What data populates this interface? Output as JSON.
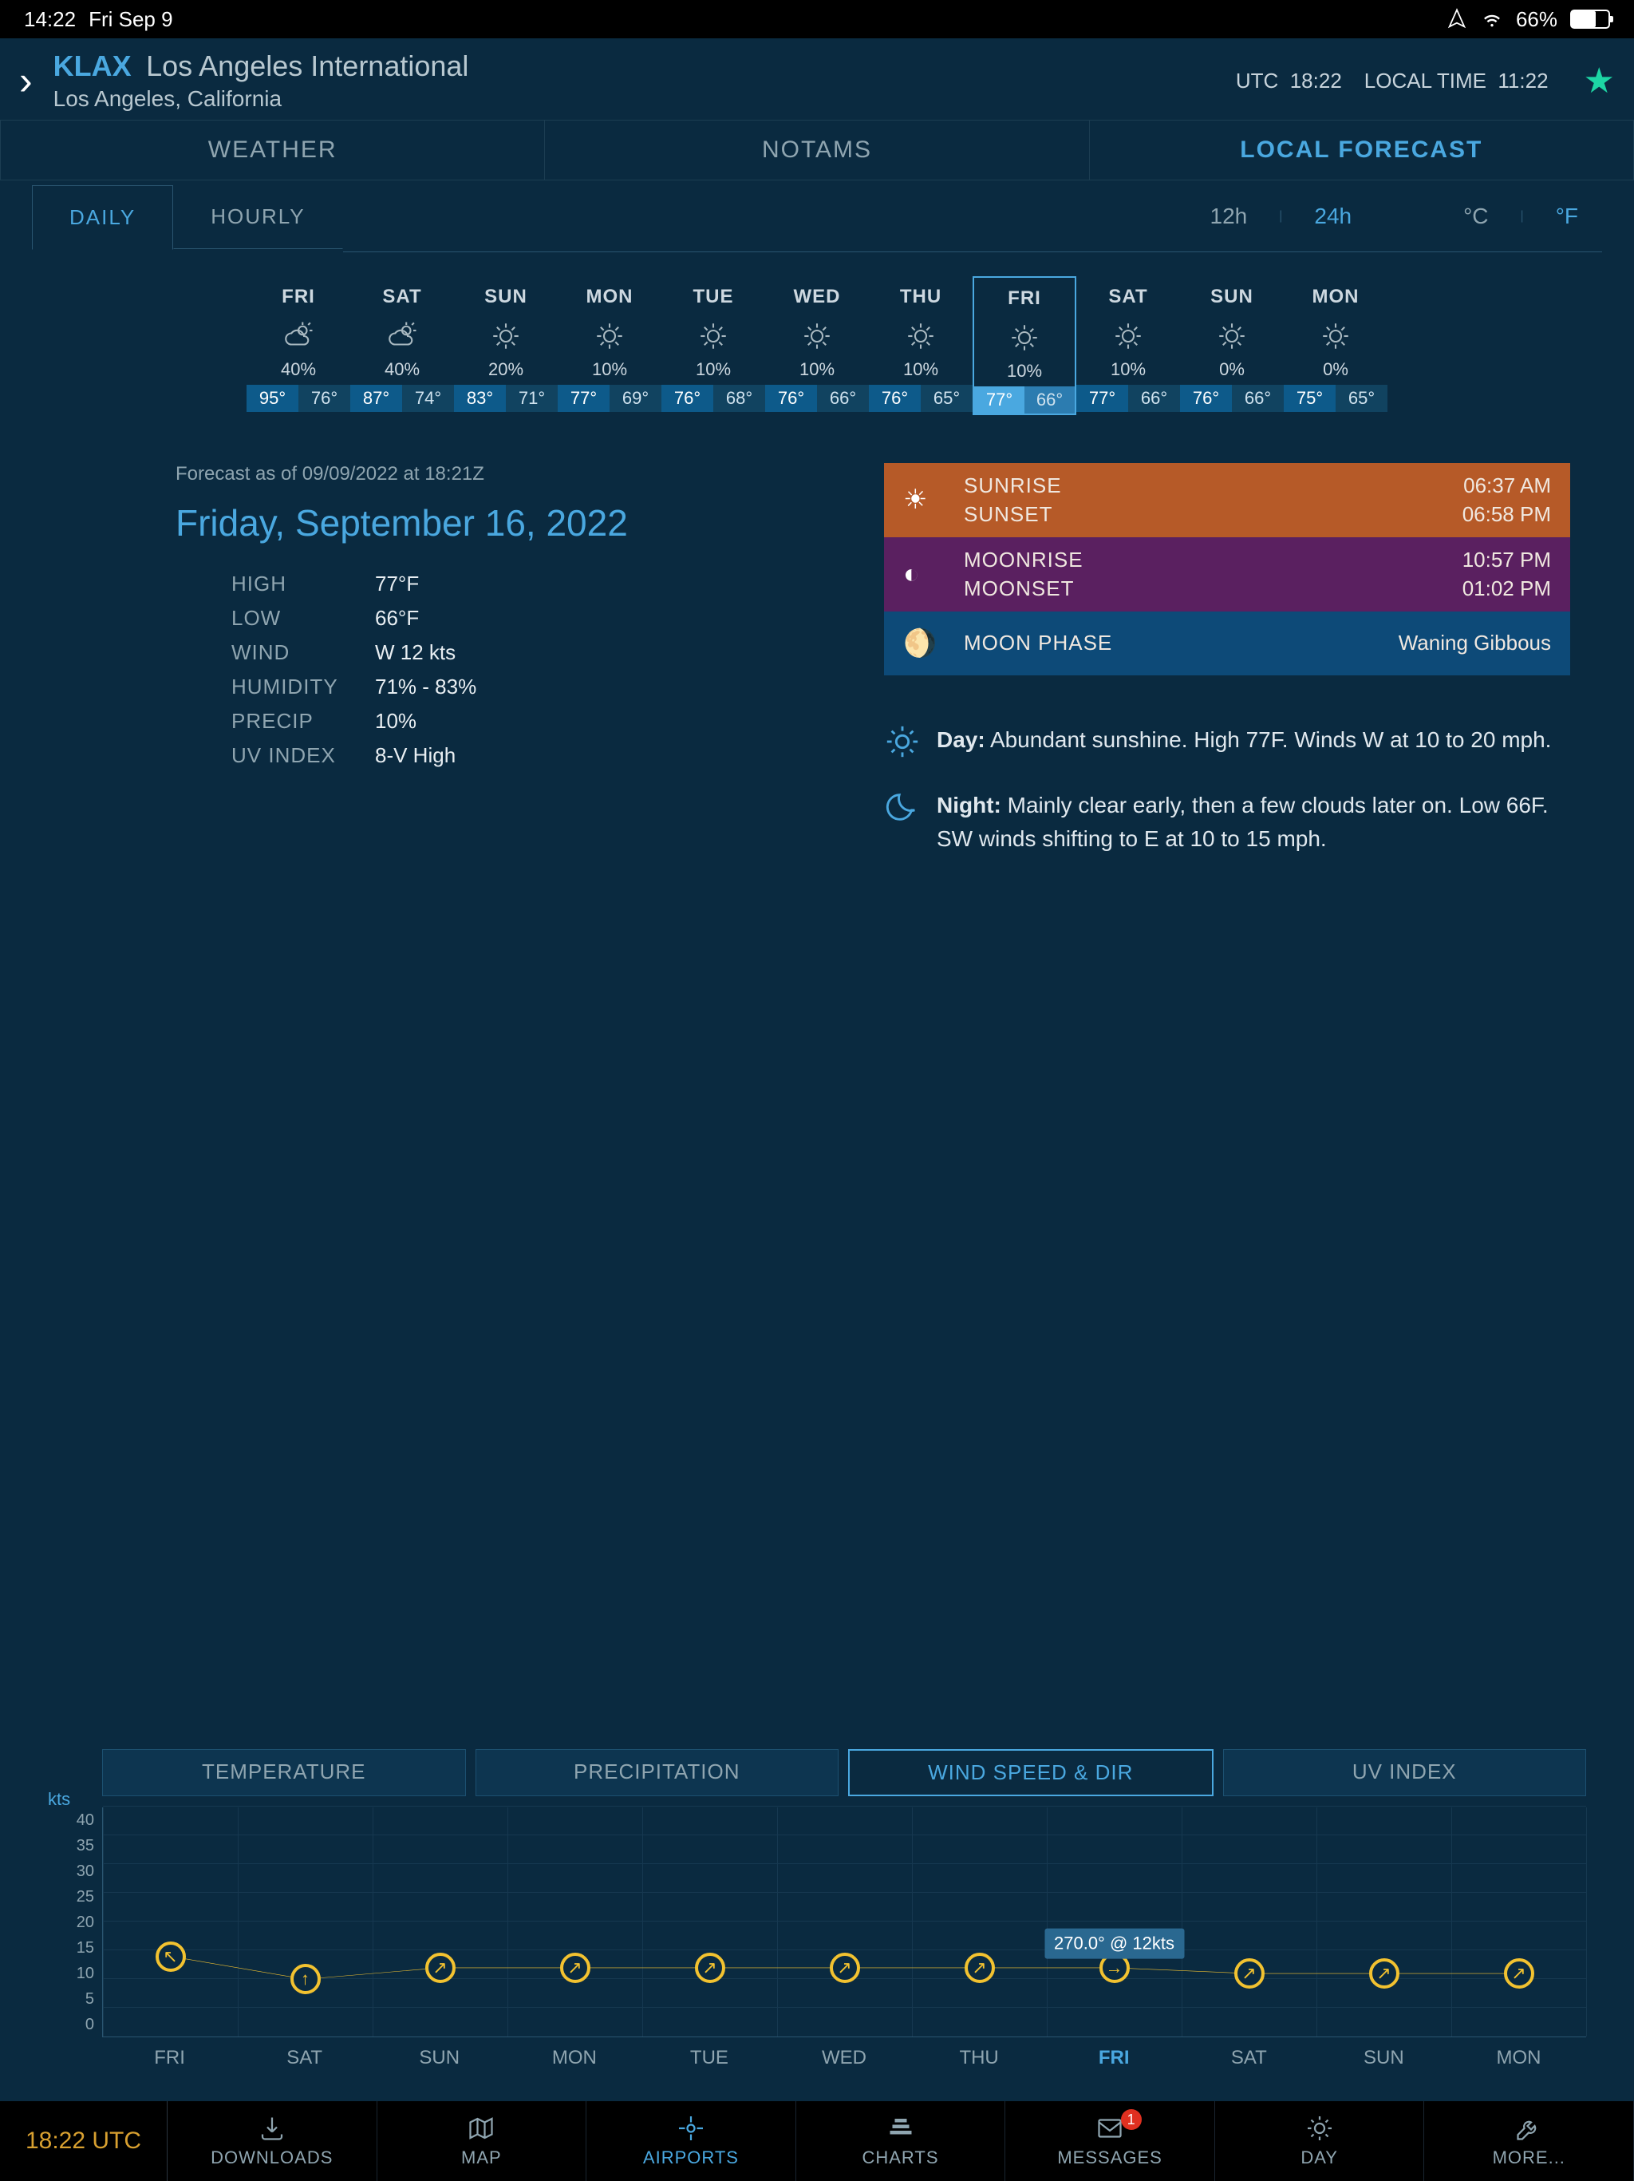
{
  "status": {
    "time": "14:22",
    "date": "Fri Sep 9",
    "battery": "66%"
  },
  "header": {
    "code": "KLAX",
    "name": "Los Angeles International",
    "location": "Los Angeles, California",
    "utc_label": "UTC",
    "utc_time": "18:22",
    "local_label": "LOCAL TIME",
    "local_time": "11:22"
  },
  "top_tabs": {
    "weather": "WEATHER",
    "notams": "NOTAMS",
    "forecast": "LOCAL FORECAST"
  },
  "sub_tabs": {
    "daily": "DAILY",
    "hourly": "HOURLY"
  },
  "toggles": {
    "h12": "12h",
    "h24": "24h",
    "c": "°C",
    "f": "°F"
  },
  "days": [
    {
      "name": "FRI",
      "pct": "40%",
      "hi": "95°",
      "lo": "76°",
      "icon": "cloud-sun"
    },
    {
      "name": "SAT",
      "pct": "40%",
      "hi": "87°",
      "lo": "74°",
      "icon": "cloud-sun"
    },
    {
      "name": "SUN",
      "pct": "20%",
      "hi": "83°",
      "lo": "71°",
      "icon": "sun"
    },
    {
      "name": "MON",
      "pct": "10%",
      "hi": "77°",
      "lo": "69°",
      "icon": "sun"
    },
    {
      "name": "TUE",
      "pct": "10%",
      "hi": "76°",
      "lo": "68°",
      "icon": "sun"
    },
    {
      "name": "WED",
      "pct": "10%",
      "hi": "76°",
      "lo": "66°",
      "icon": "sun"
    },
    {
      "name": "THU",
      "pct": "10%",
      "hi": "76°",
      "lo": "65°",
      "icon": "sun"
    },
    {
      "name": "FRI",
      "pct": "10%",
      "hi": "77°",
      "lo": "66°",
      "icon": "sun",
      "selected": true
    },
    {
      "name": "SAT",
      "pct": "10%",
      "hi": "77°",
      "lo": "66°",
      "icon": "sun"
    },
    {
      "name": "SUN",
      "pct": "0%",
      "hi": "76°",
      "lo": "66°",
      "icon": "sun"
    },
    {
      "name": "MON",
      "pct": "0%",
      "hi": "75°",
      "lo": "65°",
      "icon": "sun"
    }
  ],
  "selected_day_index": 7,
  "detail": {
    "asof": "Forecast as of 09/09/2022 at 18:21Z",
    "date": "Friday, September 16, 2022",
    "stats": [
      {
        "label": "HIGH",
        "value": "77°F"
      },
      {
        "label": "LOW",
        "value": "66°F"
      },
      {
        "label": "WIND",
        "value": "W 12 kts"
      },
      {
        "label": "HUMIDITY",
        "value": "71% - 83%"
      },
      {
        "label": "PRECIP",
        "value": "10%"
      },
      {
        "label": "UV INDEX",
        "value": "8-V High"
      }
    ],
    "sun": {
      "rise_lbl": "SUNRISE",
      "rise": "06:37 AM",
      "set_lbl": "SUNSET",
      "set": "06:58 PM"
    },
    "moon": {
      "rise_lbl": "MOONRISE",
      "rise": "10:57 PM",
      "set_lbl": "MOONSET",
      "set": "01:02 PM"
    },
    "phase": {
      "label": "MOON PHASE",
      "value": "Waning Gibbous"
    },
    "day_label": "Day:",
    "day_text": "Abundant sunshine. High 77F. Winds W at 10 to 20 mph.",
    "night_label": "Night:",
    "night_text": "Mainly clear early, then a few clouds later on. Low 66F. SW winds shifting to E at 10 to 15 mph."
  },
  "chart": {
    "y_unit": "kts",
    "tabs": {
      "temp": "TEMPERATURE",
      "precip": "PRECIPITATION",
      "wind": "WIND SPEED & DIR",
      "uv": "UV INDEX"
    },
    "active_tab": "wind",
    "y_max": 40,
    "y_step": 5,
    "x_labels": [
      "FRI",
      "SAT",
      "SUN",
      "MON",
      "TUE",
      "WED",
      "THU",
      "FRI",
      "SAT",
      "SUN",
      "MON"
    ],
    "points": [
      {
        "kts": 14,
        "dir_deg": 315
      },
      {
        "kts": 10,
        "dir_deg": 0
      },
      {
        "kts": 12,
        "dir_deg": 45
      },
      {
        "kts": 12,
        "dir_deg": 45
      },
      {
        "kts": 12,
        "dir_deg": 45
      },
      {
        "kts": 12,
        "dir_deg": 45
      },
      {
        "kts": 12,
        "dir_deg": 45
      },
      {
        "kts": 12,
        "dir_deg": 90
      },
      {
        "kts": 11,
        "dir_deg": 45
      },
      {
        "kts": 11,
        "dir_deg": 45
      },
      {
        "kts": 11,
        "dir_deg": 45
      }
    ],
    "tooltip": "270.0° @ 12kts",
    "tooltip_index": 7,
    "colors": {
      "line": "#f2c230",
      "grid": "#163850",
      "axis": "#2a5570"
    }
  },
  "bottom": {
    "time": "18:22 UTC",
    "items": [
      {
        "label": "DOWNLOADS",
        "icon": "download"
      },
      {
        "label": "MAP",
        "icon": "map"
      },
      {
        "label": "AIRPORTS",
        "icon": "target",
        "active": true
      },
      {
        "label": "CHARTS",
        "icon": "stack"
      },
      {
        "label": "MESSAGES",
        "icon": "mail",
        "badge": "1"
      },
      {
        "label": "DAY",
        "icon": "gear-sun"
      },
      {
        "label": "MORE...",
        "icon": "wrench"
      }
    ]
  }
}
